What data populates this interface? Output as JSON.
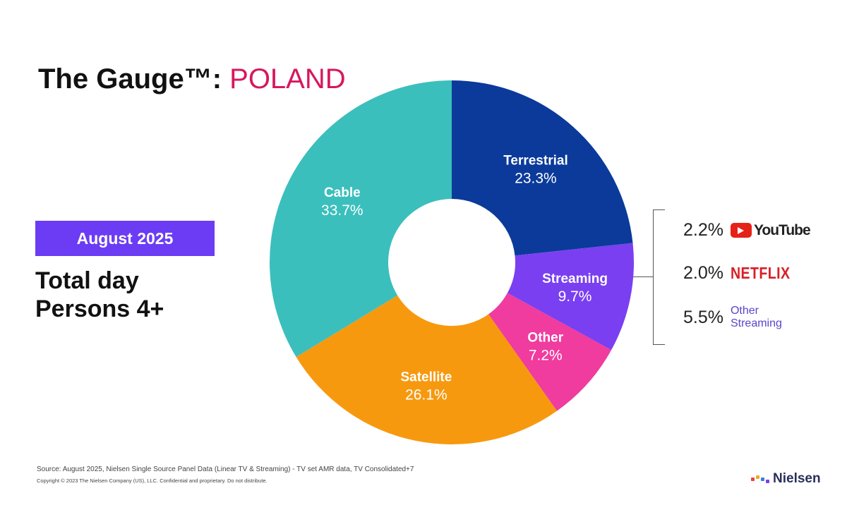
{
  "header": {
    "title_prefix": "The Gauge™: ",
    "title_country": "POLAND"
  },
  "badge": {
    "label": "August 2025"
  },
  "subtitle": {
    "line1": "Total day",
    "line2": "Persons 4+"
  },
  "chart_data": {
    "type": "pie",
    "donut": true,
    "start": "top, clockwise",
    "slices": [
      {
        "label": "Terrestrial",
        "value": 23.3,
        "display": "23.3%",
        "color": "#0b3a9b"
      },
      {
        "label": "Streaming",
        "value": 9.7,
        "display": "9.7%",
        "color": "#7a3ff1"
      },
      {
        "label": "Other",
        "value": 7.2,
        "display": "7.2%",
        "color": "#f03b9f"
      },
      {
        "label": "Satellite",
        "value": 26.1,
        "display": "26.1%",
        "color": "#f7990f"
      },
      {
        "label": "Cable",
        "value": 33.7,
        "display": "33.7%",
        "color": "#3bbfbc"
      }
    ],
    "streaming_breakdown": [
      {
        "label": "YouTube",
        "value": 2.2,
        "display": "2.2%",
        "icon": "youtube-logo"
      },
      {
        "label": "NETFLIX",
        "value": 2.0,
        "display": "2.0%",
        "icon": "netflix-logo"
      },
      {
        "label_line1": "Other",
        "label_line2": "Streaming",
        "value": 5.5,
        "display": "5.5%"
      }
    ]
  },
  "footer": {
    "source": "Source: August 2025, Nielsen Single Source Panel Data (Linear TV & Streaming) - TV set AMR data, TV Consolidated+7",
    "copyright": "Copyright © 2023 The Nielsen Company (US), LLC. Confidential and proprietary. Do not distribute."
  },
  "logo": {
    "text": "Nielsen"
  }
}
